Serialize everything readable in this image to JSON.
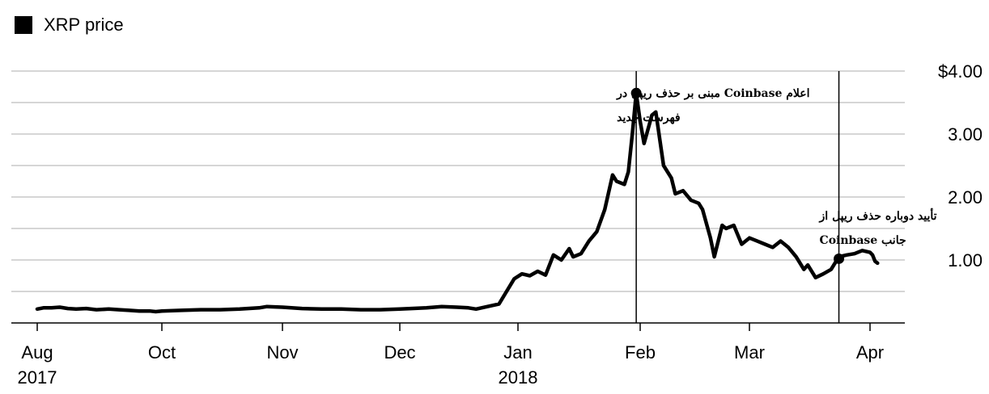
{
  "chart_data": {
    "type": "line",
    "title": "",
    "xlabel": "",
    "ylabel": "",
    "legend": {
      "position": "top-left",
      "entries": [
        "XRP price"
      ]
    },
    "grid": true,
    "ylim": [
      0,
      4.0
    ],
    "xlim": [
      "2017-08-01",
      "2018-04-07"
    ],
    "y_ticks": [
      {
        "value": 1,
        "label": "1.00"
      },
      {
        "value": 2,
        "label": "2.00"
      },
      {
        "value": 3,
        "label": "3.00"
      },
      {
        "value": 4,
        "label": "$4.00"
      }
    ],
    "x_ticks": [
      {
        "date": "2017-08-01",
        "label": "Aug",
        "sublabel": "2017"
      },
      {
        "date": "2017-10-01",
        "label": "Oct",
        "sublabel": ""
      },
      {
        "date": "2017-11-01",
        "label": "Nov",
        "sublabel": ""
      },
      {
        "date": "2017-12-01",
        "label": "Dec",
        "sublabel": ""
      },
      {
        "date": "2018-01-01",
        "label": "Jan",
        "sublabel": "2018"
      },
      {
        "date": "2018-02-01",
        "label": "Feb",
        "sublabel": ""
      },
      {
        "date": "2018-03-01",
        "label": "Mar",
        "sublabel": ""
      },
      {
        "date": "2018-04-01",
        "label": "Apr",
        "sublabel": ""
      }
    ],
    "series": [
      {
        "name": "XRP price",
        "color": "#000000",
        "points": [
          [
            "2017-08-01",
            0.22
          ],
          [
            "2017-08-04",
            0.24
          ],
          [
            "2017-08-08",
            0.24
          ],
          [
            "2017-08-12",
            0.25
          ],
          [
            "2017-08-16",
            0.23
          ],
          [
            "2017-08-20",
            0.22
          ],
          [
            "2017-08-25",
            0.23
          ],
          [
            "2017-08-30",
            0.21
          ],
          [
            "2017-09-05",
            0.22
          ],
          [
            "2017-09-10",
            0.21
          ],
          [
            "2017-09-15",
            0.2
          ],
          [
            "2017-09-20",
            0.19
          ],
          [
            "2017-09-25",
            0.19
          ],
          [
            "2017-09-28",
            0.18
          ],
          [
            "2017-10-01",
            0.19
          ],
          [
            "2017-10-06",
            0.2
          ],
          [
            "2017-10-11",
            0.21
          ],
          [
            "2017-10-16",
            0.21
          ],
          [
            "2017-10-21",
            0.22
          ],
          [
            "2017-10-26",
            0.24
          ],
          [
            "2017-10-28",
            0.26
          ],
          [
            "2017-11-01",
            0.25
          ],
          [
            "2017-11-06",
            0.23
          ],
          [
            "2017-11-11",
            0.22
          ],
          [
            "2017-11-16",
            0.22
          ],
          [
            "2017-11-21",
            0.21
          ],
          [
            "2017-11-26",
            0.21
          ],
          [
            "2017-12-01",
            0.22
          ],
          [
            "2017-12-04",
            0.23
          ],
          [
            "2017-12-08",
            0.24
          ],
          [
            "2017-12-12",
            0.26
          ],
          [
            "2017-12-16",
            0.25
          ],
          [
            "2017-12-19",
            0.24
          ],
          [
            "2017-12-21",
            0.22
          ],
          [
            "2017-12-24",
            0.26
          ],
          [
            "2017-12-27",
            0.3
          ],
          [
            "2017-12-29",
            0.5
          ],
          [
            "2017-12-31",
            0.7
          ],
          [
            "2018-01-02",
            0.78
          ],
          [
            "2018-01-04",
            0.75
          ],
          [
            "2018-01-06",
            0.82
          ],
          [
            "2018-01-08",
            0.76
          ],
          [
            "2018-01-10",
            1.08
          ],
          [
            "2018-01-12",
            1.0
          ],
          [
            "2018-01-14",
            1.18
          ],
          [
            "2018-01-15",
            1.05
          ],
          [
            "2018-01-17",
            1.1
          ],
          [
            "2018-01-19",
            1.3
          ],
          [
            "2018-01-21",
            1.45
          ],
          [
            "2018-01-23",
            1.8
          ],
          [
            "2018-01-25",
            2.35
          ],
          [
            "2018-01-26",
            2.25
          ],
          [
            "2018-01-28",
            2.2
          ],
          [
            "2018-01-29",
            2.4
          ],
          [
            "2018-01-30",
            3.0
          ],
          [
            "2018-01-31",
            3.65
          ],
          [
            "2018-02-01",
            3.2
          ],
          [
            "2018-02-02",
            2.85
          ],
          [
            "2018-02-04",
            3.3
          ],
          [
            "2018-02-05",
            3.35
          ],
          [
            "2018-02-07",
            2.5
          ],
          [
            "2018-02-09",
            2.3
          ],
          [
            "2018-02-10",
            2.05
          ],
          [
            "2018-02-12",
            2.1
          ],
          [
            "2018-02-14",
            1.95
          ],
          [
            "2018-02-16",
            1.9
          ],
          [
            "2018-02-17",
            1.8
          ],
          [
            "2018-02-19",
            1.35
          ],
          [
            "2018-02-20",
            1.05
          ],
          [
            "2018-02-22",
            1.55
          ],
          [
            "2018-02-23",
            1.5
          ],
          [
            "2018-02-25",
            1.55
          ],
          [
            "2018-02-27",
            1.25
          ],
          [
            "2018-03-01",
            1.35
          ],
          [
            "2018-03-03",
            1.3
          ],
          [
            "2018-03-05",
            1.25
          ],
          [
            "2018-03-07",
            1.2
          ],
          [
            "2018-03-09",
            1.3
          ],
          [
            "2018-03-11",
            1.2
          ],
          [
            "2018-03-13",
            1.05
          ],
          [
            "2018-03-15",
            0.85
          ],
          [
            "2018-03-16",
            0.92
          ],
          [
            "2018-03-18",
            0.72
          ],
          [
            "2018-03-20",
            0.78
          ],
          [
            "2018-03-22",
            0.85
          ],
          [
            "2018-03-24",
            1.05
          ],
          [
            "2018-03-26",
            1.08
          ],
          [
            "2018-03-28",
            1.1
          ],
          [
            "2018-03-30",
            1.15
          ],
          [
            "2018-04-01",
            1.12
          ],
          [
            "2018-04-03",
            1.08
          ],
          [
            "2018-04-05",
            0.98
          ],
          [
            "2018-04-07",
            0.95
          ]
        ]
      }
    ],
    "events": [
      {
        "date": "2018-01-31",
        "value": 3.65,
        "label_line1": "اعلام Coinbase مبنی بر حذف ریپل در",
        "label_line2": "فهرست جدید"
      },
      {
        "date": "2018-03-24",
        "value": 1.02,
        "label_line1": "تأیید دوباره حذف ریپل از",
        "label_line2": "جانب Coinbase"
      }
    ]
  }
}
